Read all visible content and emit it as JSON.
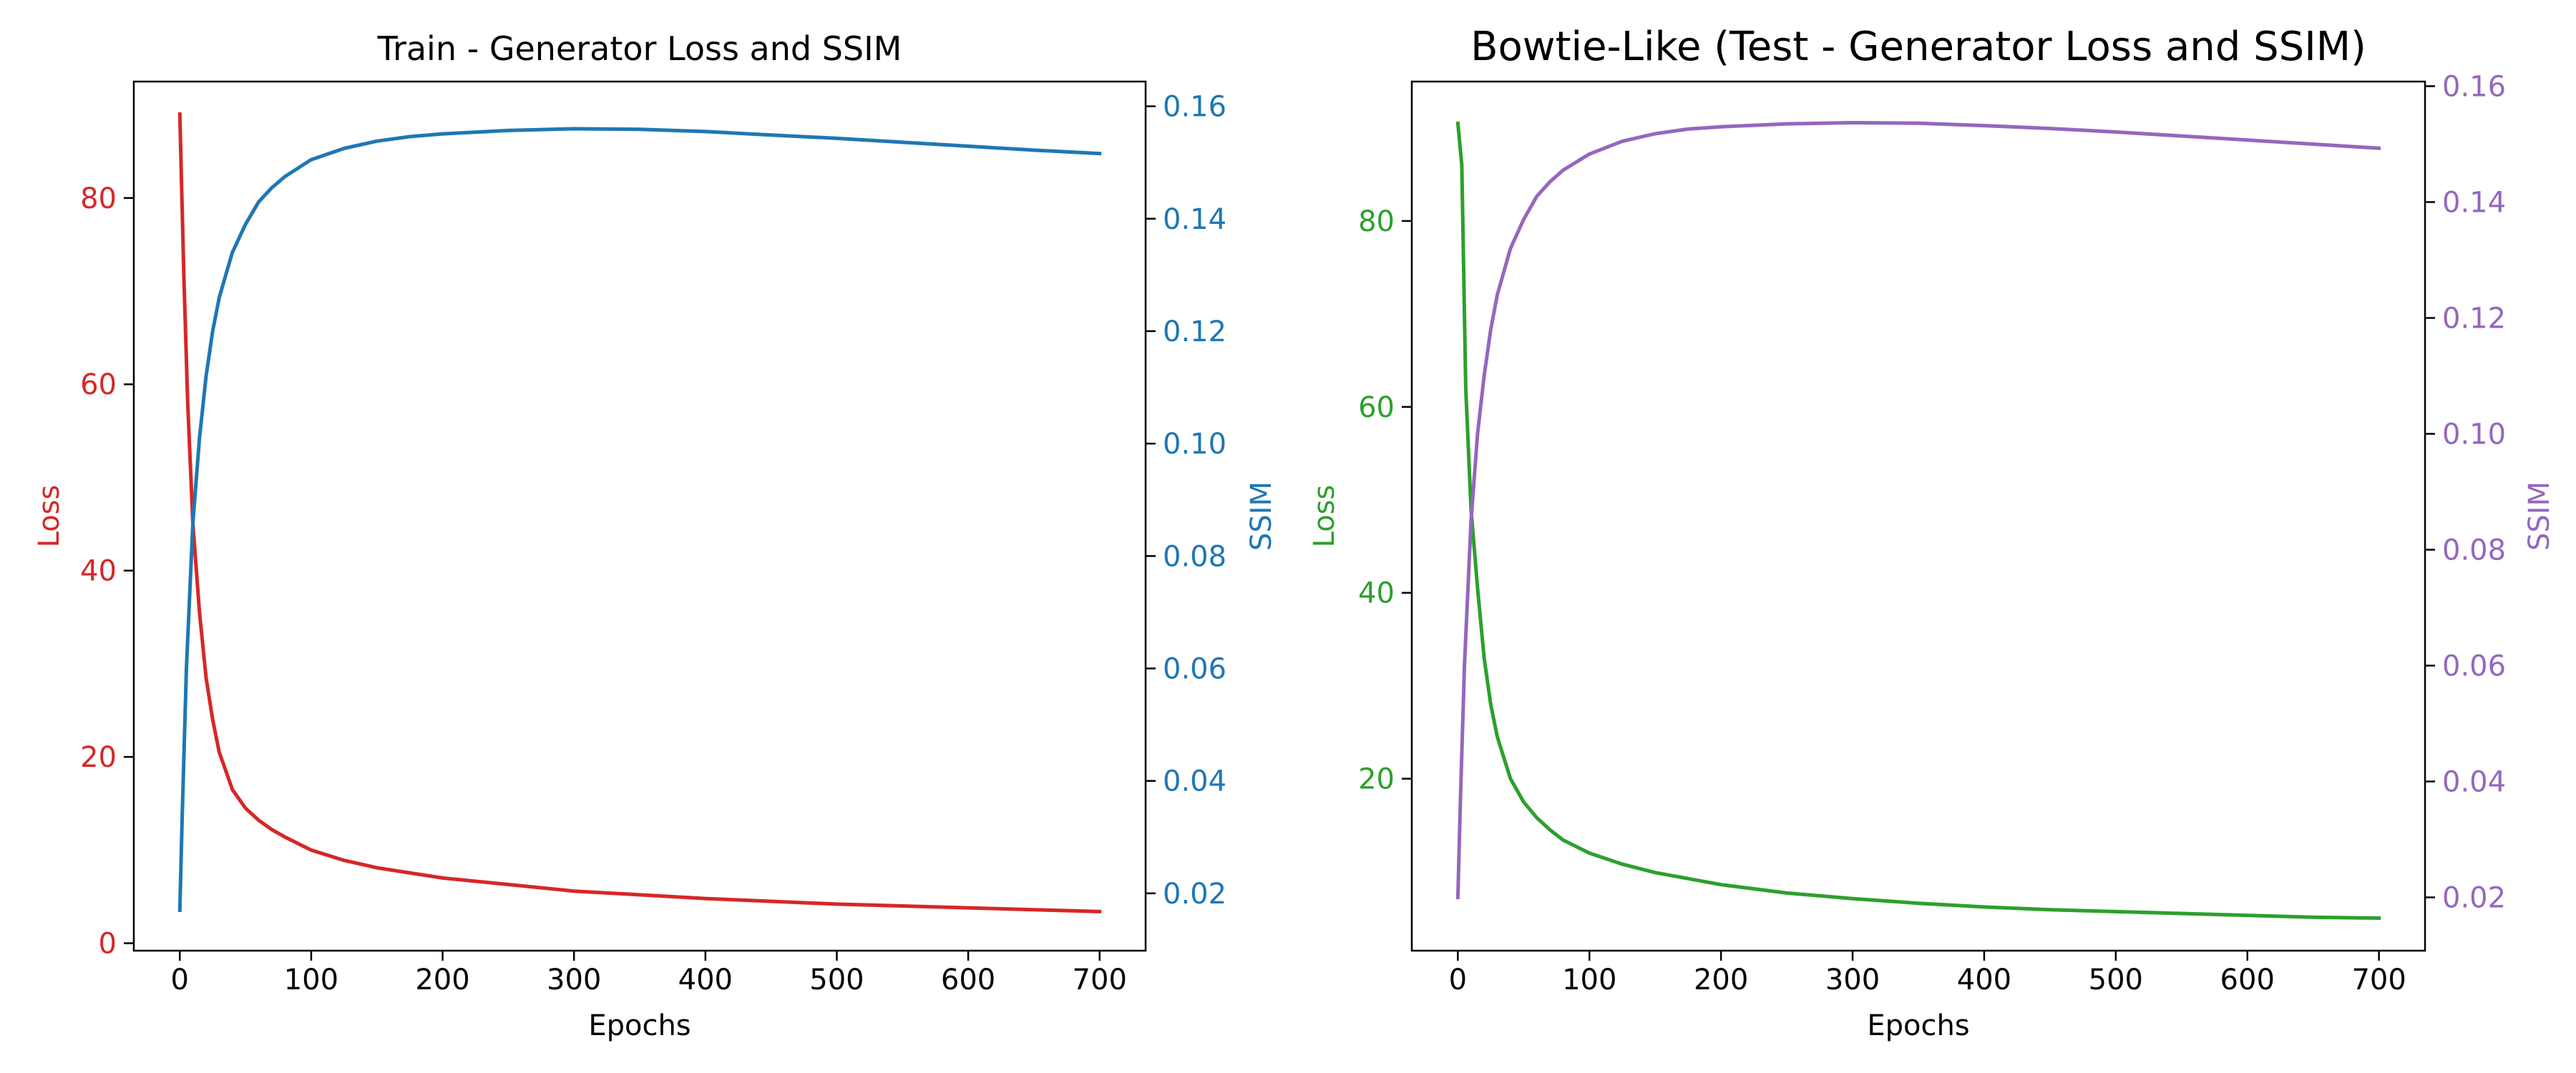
{
  "chart_data": [
    {
      "type": "line",
      "title": "Train - Generator Loss and SSIM",
      "xlabel": "Epochs",
      "ylabel_left": "Loss",
      "ylabel_right": "SSIM",
      "xlim": [
        -35,
        735
      ],
      "ylim_left": [
        -0.8,
        92.5
      ],
      "ylim_right": [
        0.0098,
        0.1644
      ],
      "x_ticks": [
        0,
        100,
        200,
        300,
        400,
        500,
        600,
        700
      ],
      "y_ticks_left": [
        0,
        20,
        40,
        60,
        80
      ],
      "y_ticks_right": [
        0.02,
        0.04,
        0.06,
        0.08,
        0.1,
        0.12,
        0.14,
        0.16
      ],
      "grid": false,
      "series": [
        {
          "axis": "left",
          "color": "#d62728",
          "x": [
            0,
            3,
            6,
            10,
            15,
            20,
            25,
            30,
            40,
            50,
            60,
            70,
            80,
            100,
            125,
            150,
            200,
            250,
            300,
            350,
            400,
            450,
            500,
            550,
            600,
            650,
            700
          ],
          "values": [
            89,
            72,
            58,
            45,
            35.5,
            28.5,
            24,
            20.5,
            16.5,
            14.5,
            13.2,
            12.2,
            11.4,
            10,
            8.9,
            8.1,
            7,
            6.3,
            5.6,
            5.2,
            4.8,
            4.5,
            4.2,
            4,
            3.8,
            3.6,
            3.4
          ]
        },
        {
          "axis": "right",
          "color": "#1f77b4",
          "x": [
            0,
            2,
            5,
            10,
            15,
            20,
            25,
            30,
            40,
            50,
            60,
            70,
            80,
            100,
            125,
            150,
            175,
            200,
            250,
            300,
            350,
            400,
            450,
            500,
            550,
            600,
            650,
            700
          ],
          "values": [
            0.017,
            0.035,
            0.06,
            0.086,
            0.101,
            0.112,
            0.12,
            0.126,
            0.134,
            0.139,
            0.143,
            0.1455,
            0.1475,
            0.1505,
            0.1525,
            0.1538,
            0.1546,
            0.1551,
            0.1557,
            0.156,
            0.1559,
            0.1555,
            0.1549,
            0.1543,
            0.1536,
            0.1529,
            0.1522,
            0.1516
          ]
        }
      ]
    },
    {
      "type": "line",
      "title": "Bowtie-Like (Test - Generator Loss and SSIM)",
      "xlabel": "Epochs",
      "ylabel_left": "Loss",
      "ylabel_right": "SSIM",
      "xlim": [
        -35,
        735
      ],
      "ylim_left": [
        1.5,
        95
      ],
      "ylim_right": [
        0.0108,
        0.1608
      ],
      "x_ticks": [
        0,
        100,
        200,
        300,
        400,
        500,
        600,
        700
      ],
      "y_ticks_left": [
        20,
        40,
        60,
        80
      ],
      "y_ticks_right": [
        0.02,
        0.04,
        0.06,
        0.08,
        0.1,
        0.12,
        0.14,
        0.16
      ],
      "grid": false,
      "series": [
        {
          "axis": "left",
          "color": "#2ca02c",
          "x": [
            0,
            3,
            6,
            10,
            15,
            20,
            25,
            30,
            40,
            50,
            60,
            70,
            80,
            100,
            125,
            150,
            200,
            250,
            300,
            350,
            400,
            450,
            500,
            550,
            600,
            650,
            700
          ],
          "values": [
            90.5,
            86,
            62,
            49,
            40.5,
            33,
            28,
            24.5,
            20,
            17.5,
            15.8,
            14.5,
            13.4,
            12,
            10.8,
            9.9,
            8.6,
            7.7,
            7.1,
            6.6,
            6.2,
            5.9,
            5.7,
            5.5,
            5.3,
            5.1,
            5
          ]
        },
        {
          "axis": "right",
          "color": "#9467bd",
          "x": [
            0,
            2,
            5,
            10,
            15,
            20,
            25,
            30,
            40,
            50,
            60,
            70,
            80,
            100,
            125,
            150,
            175,
            200,
            250,
            300,
            350,
            400,
            450,
            500,
            550,
            600,
            650,
            700
          ],
          "values": [
            0.02,
            0.037,
            0.06,
            0.085,
            0.1,
            0.11,
            0.118,
            0.124,
            0.132,
            0.137,
            0.141,
            0.1435,
            0.1455,
            0.1483,
            0.1505,
            0.1518,
            0.1526,
            0.153,
            0.1535,
            0.1537,
            0.1536,
            0.1532,
            0.1527,
            0.1521,
            0.1514,
            0.1507,
            0.15,
            0.1493
          ]
        }
      ]
    }
  ]
}
